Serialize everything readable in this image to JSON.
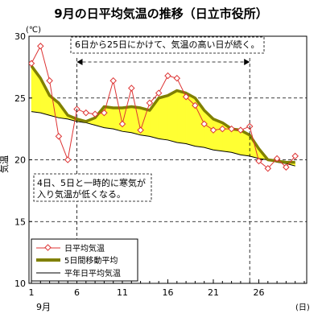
{
  "chart_data": {
    "type": "line",
    "title": "9月の日平均気温の推移（日立市役所）",
    "ylabel": "気温",
    "yunit": "(℃)",
    "xunit": "(日)",
    "month_label": "9月",
    "ylim": [
      10,
      30
    ],
    "yticks": [
      10,
      15,
      20,
      25,
      30
    ],
    "xlim": [
      1,
      31
    ],
    "xticks": [
      1,
      6,
      11,
      16,
      21,
      26
    ],
    "grid": "horizontal-dashed",
    "legend_position": "bottom-left",
    "x": [
      1,
      2,
      3,
      4,
      5,
      6,
      7,
      8,
      9,
      10,
      11,
      12,
      13,
      14,
      15,
      16,
      17,
      18,
      19,
      20,
      21,
      22,
      23,
      24,
      25,
      26,
      27,
      28,
      29,
      30
    ],
    "series": [
      {
        "name": "日平均気温",
        "color": "#dd3333",
        "marker": "diamond-open",
        "values": [
          27.8,
          29.2,
          26.4,
          21.9,
          20.0,
          24.1,
          23.8,
          23.7,
          23.8,
          26.4,
          22.9,
          25.8,
          22.4,
          24.6,
          25.4,
          26.8,
          26.6,
          25.1,
          24.4,
          22.9,
          22.4,
          22.5,
          22.5,
          22.4,
          22.7,
          19.9,
          19.3,
          20.1,
          19.4,
          20.3
        ]
      },
      {
        "name": "5日間移動平均",
        "color": "#808000",
        "values": [
          27.6,
          26.6,
          25.2,
          24.6,
          23.6,
          23.3,
          23.1,
          23.4,
          24.3,
          24.2,
          24.2,
          24.3,
          24.2,
          24.0,
          25.0,
          25.2,
          25.6,
          25.4,
          25.0,
          24.0,
          23.3,
          23.0,
          22.5,
          22.4,
          22.0,
          20.9,
          20.0,
          19.9,
          19.8,
          19.8
        ]
      },
      {
        "name": "平年日平均気温",
        "color": "#000000",
        "values": [
          23.9,
          23.8,
          23.6,
          23.4,
          23.3,
          23.1,
          23.0,
          22.8,
          22.6,
          22.5,
          22.3,
          22.2,
          22.0,
          21.9,
          21.7,
          21.6,
          21.4,
          21.3,
          21.1,
          21.0,
          20.8,
          20.7,
          20.6,
          20.4,
          20.3,
          20.1,
          20.0,
          19.8,
          19.7,
          19.5
        ]
      }
    ],
    "fill": {
      "above_color": "#ffff33",
      "below_color": "#33cccc"
    },
    "annotations": [
      {
        "id": "warm",
        "text": "6日から25日にかけて、気温の高い日が続く。",
        "x_start": 6,
        "x_end": 25
      },
      {
        "id": "cold",
        "text": "4日、5日と一時的に寒気が入り気温が低くなる。",
        "line1": "4日、5日と一時的に寒気が",
        "line2": "入り気温が低くなる。"
      }
    ]
  }
}
